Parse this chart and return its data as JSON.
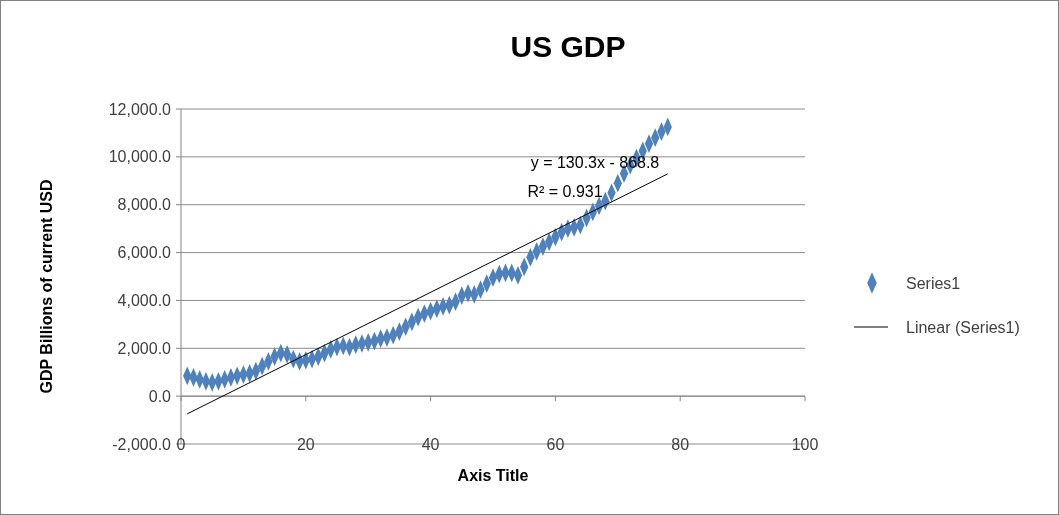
{
  "chart_data": {
    "type": "scatter",
    "title": "US GDP",
    "xlabel": "Axis Title",
    "ylabel": "GDP Billions of current USD",
    "annotations": [
      "y = 130.3x - 868.8",
      "R² = 0.931"
    ],
    "xlim": [
      0,
      100
    ],
    "xticks": [
      0,
      20,
      40,
      60,
      80,
      100
    ],
    "ylim": [
      -2000,
      12000
    ],
    "yticks": [
      {
        "value": -2000,
        "label": "-2,000.0"
      },
      {
        "value": 0,
        "label": "0.0"
      },
      {
        "value": 2000,
        "label": "2,000.0"
      },
      {
        "value": 4000,
        "label": "4,000.0"
      },
      {
        "value": 6000,
        "label": "6,000.0"
      },
      {
        "value": 8000,
        "label": "8,000.0"
      },
      {
        "value": 10000,
        "label": "10,000.0"
      },
      {
        "value": 12000,
        "label": "12,000.0"
      }
    ],
    "grid": "y",
    "legend": "right",
    "series": [
      {
        "name": "Series1",
        "marker": "diamond",
        "color": "#4f81bd",
        "x": [
          1,
          2,
          3,
          4,
          5,
          6,
          7,
          8,
          9,
          10,
          11,
          12,
          13,
          14,
          15,
          16,
          17,
          18,
          19,
          20,
          21,
          22,
          23,
          24,
          25,
          26,
          27,
          28,
          29,
          30,
          31,
          32,
          33,
          34,
          35,
          36,
          37,
          38,
          39,
          40,
          41,
          42,
          43,
          44,
          45,
          46,
          47,
          48,
          49,
          50,
          51,
          52,
          53,
          54,
          55,
          56,
          57,
          58,
          59,
          60,
          61,
          62,
          63,
          64,
          65,
          66,
          67,
          68,
          69,
          70,
          71,
          72,
          73,
          74,
          75,
          76,
          77,
          78
        ],
        "values": [
          850,
          780,
          700,
          620,
          580,
          620,
          700,
          780,
          850,
          900,
          950,
          1050,
          1250,
          1450,
          1650,
          1800,
          1750,
          1550,
          1450,
          1500,
          1550,
          1650,
          1800,
          1950,
          2050,
          2100,
          2050,
          2150,
          2200,
          2250,
          2300,
          2400,
          2450,
          2550,
          2700,
          2900,
          3100,
          3300,
          3450,
          3550,
          3650,
          3750,
          3800,
          3950,
          4200,
          4300,
          4250,
          4450,
          4700,
          4950,
          5100,
          5150,
          5150,
          5050,
          5400,
          5800,
          6050,
          6250,
          6450,
          6650,
          6850,
          7000,
          7050,
          7150,
          7450,
          7700,
          7950,
          8150,
          8500,
          8900,
          9300,
          9650,
          9950,
          10250,
          10550,
          10800,
          11050,
          11250
        ]
      },
      {
        "name": "Linear (Series1)",
        "type": "line",
        "marker": "none",
        "color": "#000000",
        "x": [
          1,
          78
        ],
        "values": [
          -740,
          9290
        ]
      }
    ]
  }
}
